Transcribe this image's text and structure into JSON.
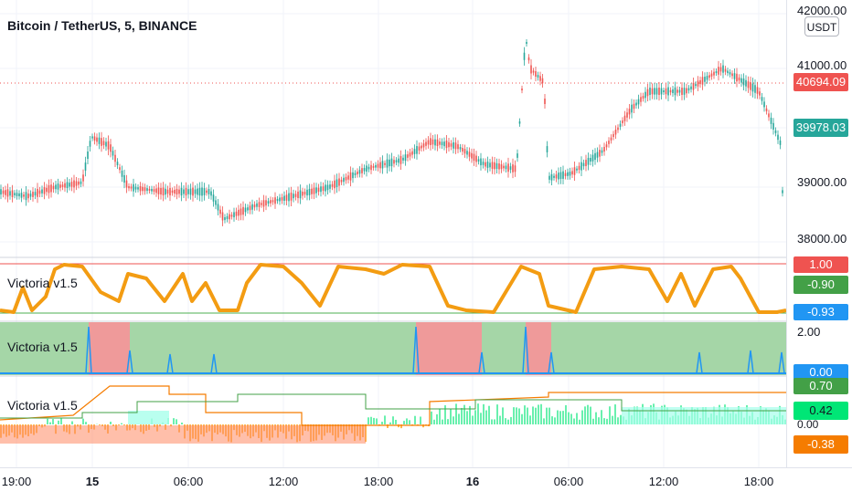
{
  "symbol": {
    "title": "Bitcoin / TetherUS, 5, BINANCE"
  },
  "currency_button": "USDT",
  "price_scale": {
    "ticks": [
      "42000.00",
      "41000.00",
      "39000.00",
      "38000.00"
    ],
    "last_price": "40694.09",
    "current_price": "39978.03",
    "colors": {
      "last": "#ef5350",
      "current": "#26a69a"
    }
  },
  "indicators": [
    {
      "label": "Victoria v1.5",
      "values": [
        "1.00",
        "-0.90",
        "-0.93"
      ],
      "colors": [
        "#ef5350",
        "#4caf50",
        "#2196f3"
      ]
    },
    {
      "label": "Victoria v1.5",
      "values": [
        "2.00",
        "0.00"
      ],
      "value_color": "#2196f3"
    },
    {
      "label": "Victoria v1.5",
      "values": [
        "0.70",
        "0.42",
        "0.00",
        "-0.38"
      ],
      "colors": [
        "#43a047",
        "#00e676",
        "#f57c00"
      ]
    }
  ],
  "time_axis": [
    {
      "label": "19:00",
      "bold": false
    },
    {
      "label": "15",
      "bold": true
    },
    {
      "label": "06:00",
      "bold": false
    },
    {
      "label": "12:00",
      "bold": false
    },
    {
      "label": "18:00",
      "bold": false
    },
    {
      "label": "16",
      "bold": true
    },
    {
      "label": "06:00",
      "bold": false
    },
    {
      "label": "12:00",
      "bold": false
    },
    {
      "label": "18:00",
      "bold": false
    }
  ],
  "colors": {
    "up": "#26a69a",
    "down": "#ef5350",
    "osc": "#f39c12",
    "green_zone": "#a5d6a7",
    "red_zone": "#ef9a9a"
  }
}
